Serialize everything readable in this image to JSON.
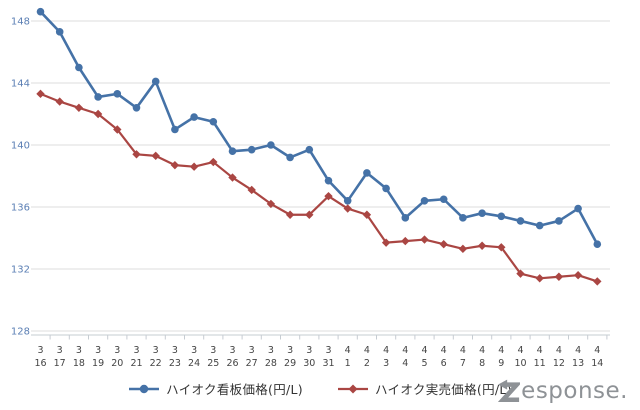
{
  "chart_data": {
    "type": "line",
    "title": "",
    "xlabel": "",
    "ylabel": "",
    "ylim": [
      128,
      148
    ],
    "yticks": [
      "128",
      "132",
      "136",
      "140",
      "144",
      "148"
    ],
    "grid": true,
    "legend_position": "bottom",
    "categories": [
      {
        "month": "3",
        "day": "16"
      },
      {
        "month": "3",
        "day": "17"
      },
      {
        "month": "3",
        "day": "18"
      },
      {
        "month": "3",
        "day": "19"
      },
      {
        "month": "3",
        "day": "20"
      },
      {
        "month": "3",
        "day": "21"
      },
      {
        "month": "3",
        "day": "22"
      },
      {
        "month": "3",
        "day": "23"
      },
      {
        "month": "3",
        "day": "24"
      },
      {
        "month": "3",
        "day": "25"
      },
      {
        "month": "3",
        "day": "26"
      },
      {
        "month": "3",
        "day": "27"
      },
      {
        "month": "3",
        "day": "28"
      },
      {
        "month": "3",
        "day": "29"
      },
      {
        "month": "3",
        "day": "30"
      },
      {
        "month": "3",
        "day": "31"
      },
      {
        "month": "4",
        "day": "1"
      },
      {
        "month": "4",
        "day": "2"
      },
      {
        "month": "4",
        "day": "3"
      },
      {
        "month": "4",
        "day": "4"
      },
      {
        "month": "4",
        "day": "5"
      },
      {
        "month": "4",
        "day": "6"
      },
      {
        "month": "4",
        "day": "7"
      },
      {
        "month": "4",
        "day": "8"
      },
      {
        "month": "4",
        "day": "9"
      },
      {
        "month": "4",
        "day": "10"
      },
      {
        "month": "4",
        "day": "11"
      },
      {
        "month": "4",
        "day": "12"
      },
      {
        "month": "4",
        "day": "13"
      },
      {
        "month": "4",
        "day": "14"
      }
    ],
    "series": [
      {
        "id": "signboard",
        "name": "ハイオク看板価格(円/L)",
        "marker": "circle",
        "color": "#4572a7",
        "values": [
          148.6,
          147.3,
          145.0,
          143.1,
          143.3,
          142.4,
          144.1,
          141.0,
          141.8,
          141.5,
          139.6,
          139.7,
          140.0,
          139.2,
          139.7,
          137.7,
          136.4,
          138.2,
          137.2,
          135.3,
          136.4,
          136.5,
          135.3,
          135.6,
          135.4,
          135.1,
          134.8,
          135.1,
          135.9,
          133.6
        ]
      },
      {
        "id": "actual",
        "name": "ハイオク実売価格(円/L)",
        "marker": "diamond",
        "color": "#aa4643",
        "values": [
          143.3,
          142.8,
          142.4,
          142.0,
          141.0,
          139.4,
          139.3,
          138.7,
          138.6,
          138.9,
          137.9,
          137.1,
          136.2,
          135.5,
          135.5,
          136.7,
          135.9,
          135.5,
          133.7,
          133.8,
          133.9,
          133.6,
          133.3,
          133.5,
          133.4,
          131.7,
          131.4,
          131.5,
          131.6,
          131.2
        ]
      }
    ],
    "colors": {
      "grid": "#dcdcdc",
      "axis": "#c6ccd2",
      "y_label": "#5b7fb4",
      "x_label": "#444444",
      "watermark": "#8e9296"
    }
  },
  "legend": {
    "signboard_label": "ハイオク看板価格(円/L)",
    "actual_label": "ハイオク実売価格(円/L)"
  },
  "watermark": {
    "brand": "Response.",
    "text_after_logo": "esponse."
  }
}
